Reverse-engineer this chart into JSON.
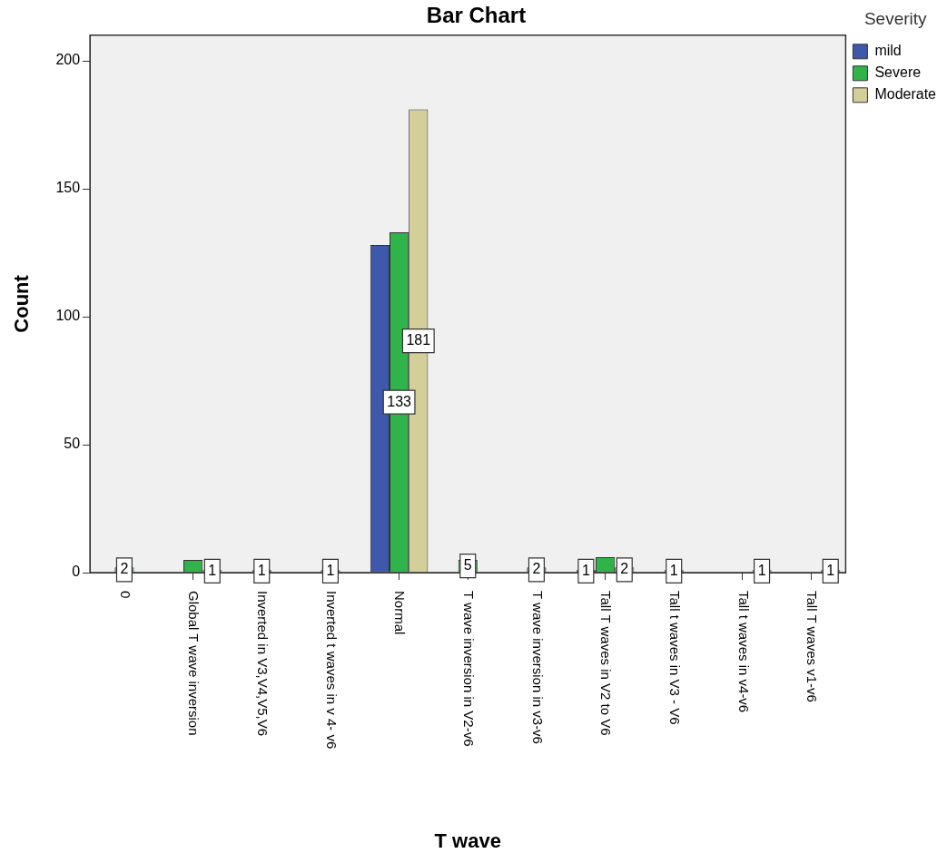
{
  "chart_data": {
    "type": "bar",
    "title": "Bar Chart",
    "xlabel": "T wave",
    "ylabel": "Count",
    "legend_title": "Severity",
    "legend": "right",
    "categories": [
      "0",
      "Global T wave inversion",
      "Inverted in V3,V4,V5,V6",
      "Inverted t waves in v 4- v6",
      "Normal",
      "T wave inversion in V2-v6",
      "T wave inversion in v3-v6",
      "Tall T waves in V2 to V6",
      "Tall t waves in V3 - V6",
      "Tall t waves in v4-v6",
      "Tall T waves v1-v6"
    ],
    "series": [
      {
        "name": "mild",
        "color": "#3e58ac",
        "values": [
          null,
          null,
          null,
          null,
          128,
          null,
          null,
          1,
          null,
          null,
          null
        ],
        "value_labels": [
          null,
          null,
          null,
          null,
          null,
          null,
          null,
          "1",
          null,
          null,
          null
        ]
      },
      {
        "name": "Severe",
        "color": "#2fb34a",
        "values": [
          2,
          5,
          1,
          1,
          133,
          5,
          2,
          6,
          1,
          null,
          null
        ],
        "value_labels": [
          "2",
          null,
          "1",
          "1",
          "133",
          "5",
          "2",
          null,
          "1",
          null,
          null
        ]
      },
      {
        "name": "Moderate",
        "color": "#d4ce98",
        "values": [
          null,
          1,
          null,
          null,
          181,
          null,
          null,
          2,
          null,
          1,
          1
        ],
        "value_labels": [
          null,
          "1",
          null,
          null,
          "181",
          null,
          null,
          "2",
          null,
          "1",
          "1"
        ]
      }
    ],
    "ylim": [
      0,
      210
    ],
    "yticks": [
      0,
      50,
      100,
      150,
      200
    ],
    "grid": false
  }
}
